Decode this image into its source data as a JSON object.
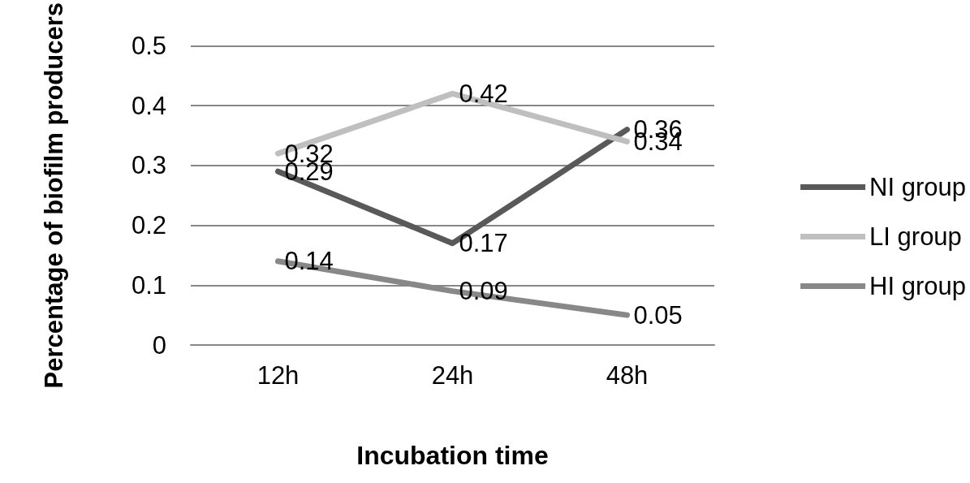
{
  "chart_data": {
    "type": "line",
    "xlabel": "Incubation time",
    "ylabel": "Percentage of biofilm producers",
    "categories": [
      "12h",
      "24h",
      "48h"
    ],
    "series": [
      {
        "name": "NI group",
        "color": "#595959",
        "values": [
          0.29,
          0.17,
          0.36
        ]
      },
      {
        "name": "LI group",
        "color": "#bfbfbf",
        "values": [
          0.32,
          0.42,
          0.34
        ]
      },
      {
        "name": "HI group",
        "color": "#888888",
        "values": [
          0.14,
          0.09,
          0.05
        ]
      }
    ],
    "ylim": [
      0,
      0.5
    ],
    "yticks": [
      0,
      0.1,
      0.2,
      0.3,
      0.4,
      0.5
    ],
    "grid": "y",
    "legend": "right",
    "marker": "none",
    "line_style": "solid",
    "data_labels": true
  }
}
